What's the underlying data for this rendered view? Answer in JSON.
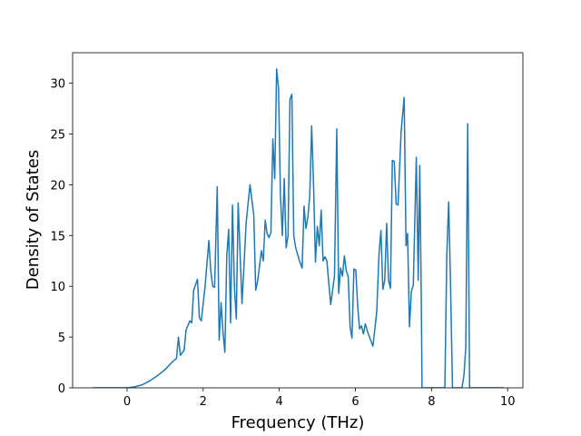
{
  "chart_data": {
    "type": "line",
    "xlabel": "Frequency (THz)",
    "ylabel": "Density of States",
    "xlim": [
      -1.43,
      10.4
    ],
    "ylim": [
      0,
      33.0
    ],
    "xticks": [
      0,
      2,
      4,
      6,
      8,
      10
    ],
    "yticks": [
      0,
      5,
      10,
      15,
      20,
      25,
      30
    ],
    "series": [
      {
        "color": "#1f77b4",
        "x": [
          -0.9,
          0,
          0.2,
          0.4,
          0.6,
          0.8,
          1.0,
          1.2,
          1.3,
          1.35,
          1.4,
          1.5,
          1.55,
          1.65,
          1.7,
          1.75,
          1.85,
          1.9,
          1.95,
          2.05,
          2.15,
          2.2,
          2.25,
          2.3,
          2.37,
          2.42,
          2.47,
          2.52,
          2.57,
          2.62,
          2.67,
          2.72,
          2.77,
          2.82,
          2.87,
          2.92,
          3.02,
          3.13,
          3.23,
          3.33,
          3.38,
          3.43,
          3.53,
          3.58,
          3.63,
          3.68,
          3.73,
          3.78,
          3.83,
          3.88,
          3.93,
          3.98,
          4.03,
          4.08,
          4.13,
          4.18,
          4.23,
          4.28,
          4.33,
          4.38,
          4.43,
          4.53,
          4.6,
          4.65,
          4.7,
          4.75,
          4.8,
          4.85,
          4.9,
          4.95,
          5.0,
          5.05,
          5.1,
          5.15,
          5.2,
          5.25,
          5.35,
          5.45,
          5.51,
          5.56,
          5.61,
          5.66,
          5.71,
          5.76,
          5.81,
          5.86,
          5.91,
          5.96,
          6.01,
          6.06,
          6.11,
          6.16,
          6.21,
          6.26,
          6.32,
          6.46,
          6.56,
          6.62,
          6.67,
          6.72,
          6.77,
          6.82,
          6.87,
          6.92,
          6.97,
          7.02,
          7.07,
          7.12,
          7.2,
          7.28,
          7.33,
          7.37,
          7.42,
          7.47,
          7.52,
          7.6,
          7.65,
          7.69,
          7.73,
          7.75,
          8.35,
          8.4,
          8.45,
          8.5,
          8.55,
          8.8,
          8.85,
          8.9,
          8.95,
          9.0,
          9.9
        ],
        "values": [
          0,
          0,
          0.1,
          0.3,
          0.7,
          1.2,
          1.8,
          2.6,
          2.9,
          5.0,
          3.2,
          3.7,
          5.7,
          6.6,
          6.4,
          9.6,
          10.7,
          6.9,
          6.6,
          10.0,
          14.5,
          11.5,
          10.0,
          9.9,
          19.8,
          4.7,
          8.4,
          5.5,
          3.5,
          13.0,
          15.6,
          6.4,
          18.0,
          10.0,
          6.8,
          18.2,
          8.3,
          16.3,
          20.0,
          17.0,
          9.6,
          10.5,
          13.5,
          12.5,
          16.5,
          15.2,
          14.8,
          15.3,
          24.5,
          20.6,
          31.4,
          29.5,
          19.0,
          15.0,
          20.6,
          13.8,
          15.0,
          28.4,
          28.9,
          15.0,
          13.8,
          12.5,
          11.8,
          17.9,
          15.7,
          16.8,
          18.9,
          25.8,
          20.0,
          12.4,
          15.9,
          14.0,
          17.5,
          12.5,
          12.9,
          12.5,
          8.2,
          11.0,
          25.5,
          9.3,
          11.8,
          11.0,
          13.0,
          11.5,
          11.0,
          6.0,
          4.9,
          11.7,
          11.6,
          8.0,
          5.8,
          6.1,
          5.3,
          6.3,
          5.5,
          4.1,
          7.5,
          13.2,
          15.5,
          9.7,
          10.6,
          16.2,
          10.6,
          9.8,
          22.4,
          22.3,
          18.1,
          18.0,
          25.2,
          28.6,
          14.0,
          15.2,
          6.0,
          9.5,
          10.1,
          22.7,
          10.6,
          21.9,
          9.0,
          0,
          0,
          13.0,
          18.3,
          10.0,
          0,
          0,
          1.2,
          4.0,
          26.0,
          0,
          0
        ]
      }
    ]
  }
}
